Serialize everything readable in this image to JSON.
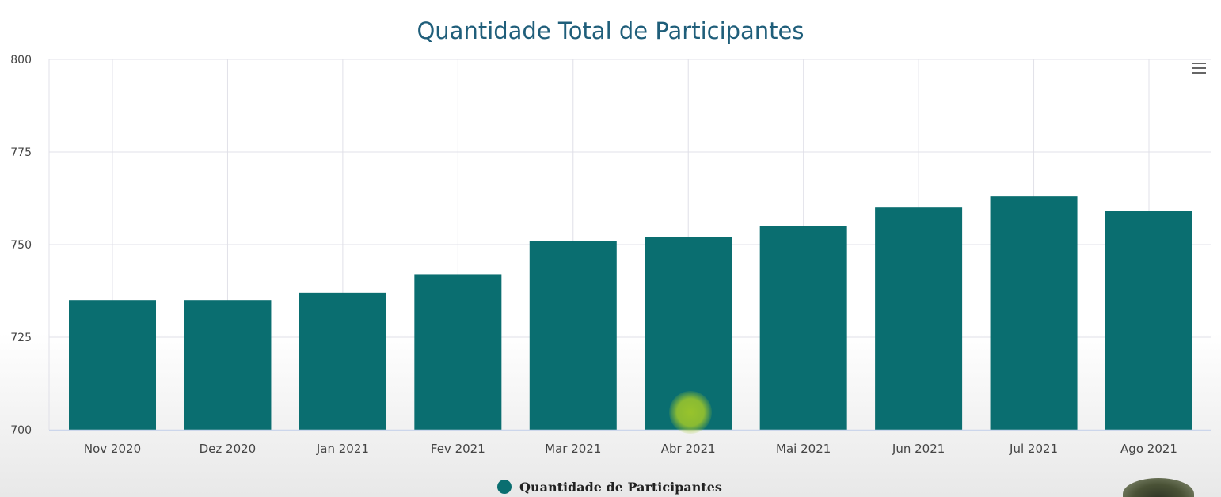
{
  "chart_data": {
    "type": "bar",
    "title": "Quantidade Total de Participantes",
    "categories": [
      "Nov 2020",
      "Dez 2020",
      "Jan 2021",
      "Fev 2021",
      "Mar 2021",
      "Abr 2021",
      "Mai 2021",
      "Jun 2021",
      "Jul 2021",
      "Ago 2021"
    ],
    "series": [
      {
        "name": "Quantidade de Participantes",
        "values": [
          735,
          735,
          737,
          742,
          751,
          752,
          755,
          760,
          763,
          759
        ]
      }
    ],
    "ylim": [
      700,
      800
    ],
    "yticks": [
      700,
      725,
      750,
      775,
      800
    ],
    "grid": true,
    "legend_position": "bottom-center"
  },
  "colors": {
    "bar": "#0a6e70",
    "title": "#1f5e7a",
    "grid": "#e0e0e8",
    "axis": "#ccd6eb",
    "tick_label": "#444444"
  },
  "icons": {
    "menu": "hamburger-menu-icon"
  }
}
